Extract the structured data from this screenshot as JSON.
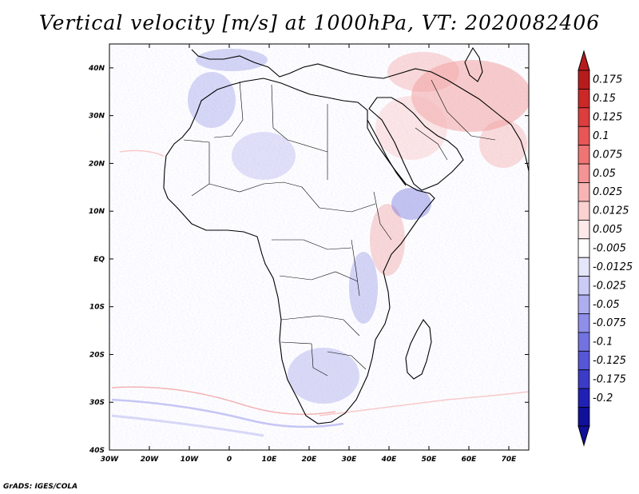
{
  "title": "Vertical velocity [m/s] at 1000hPa, VT: 2020082406",
  "credit": "GrADS: IGES/COLA",
  "map": {
    "lon_range": [
      -30,
      75
    ],
    "lat_range": [
      -40,
      45
    ],
    "x_ticks": [
      {
        "value": -30,
        "label": "30W"
      },
      {
        "value": -20,
        "label": "20W"
      },
      {
        "value": -10,
        "label": "10W"
      },
      {
        "value": 0,
        "label": "0"
      },
      {
        "value": 10,
        "label": "10E"
      },
      {
        "value": 20,
        "label": "20E"
      },
      {
        "value": 30,
        "label": "30E"
      },
      {
        "value": 40,
        "label": "40E"
      },
      {
        "value": 50,
        "label": "50E"
      },
      {
        "value": 60,
        "label": "60E"
      },
      {
        "value": 70,
        "label": "70E"
      }
    ],
    "y_ticks": [
      {
        "value": 40,
        "label": "40N"
      },
      {
        "value": 30,
        "label": "30N"
      },
      {
        "value": 20,
        "label": "20N"
      },
      {
        "value": 10,
        "label": "10N"
      },
      {
        "value": 0,
        "label": "EQ"
      },
      {
        "value": -10,
        "label": "10S"
      },
      {
        "value": -20,
        "label": "20S"
      },
      {
        "value": -30,
        "label": "30S"
      },
      {
        "value": -40,
        "label": "40S"
      }
    ]
  },
  "colorbar": {
    "colors": [
      "#b71c1c",
      "#cc2828",
      "#dc3d3d",
      "#e85656",
      "#ef7474",
      "#f49494",
      "#f8b4b4",
      "#fbd2d2",
      "#fde9e9",
      "#ffffff",
      "#e6e6fb",
      "#cbcbf6",
      "#adadf0",
      "#8f8fe9",
      "#7272e0",
      "#5656d6",
      "#3b3bc8",
      "#2020b6",
      "#10109a"
    ],
    "labels": [
      "0.175",
      "0.15",
      "0.125",
      "0.1",
      "0.075",
      "0.05",
      "0.025",
      "0.0125",
      "0.005",
      "-0.005",
      "-0.0125",
      "-0.025",
      "-0.05",
      "-0.075",
      "-0.1",
      "-0.125",
      "-0.175",
      "-0.2"
    ]
  }
}
